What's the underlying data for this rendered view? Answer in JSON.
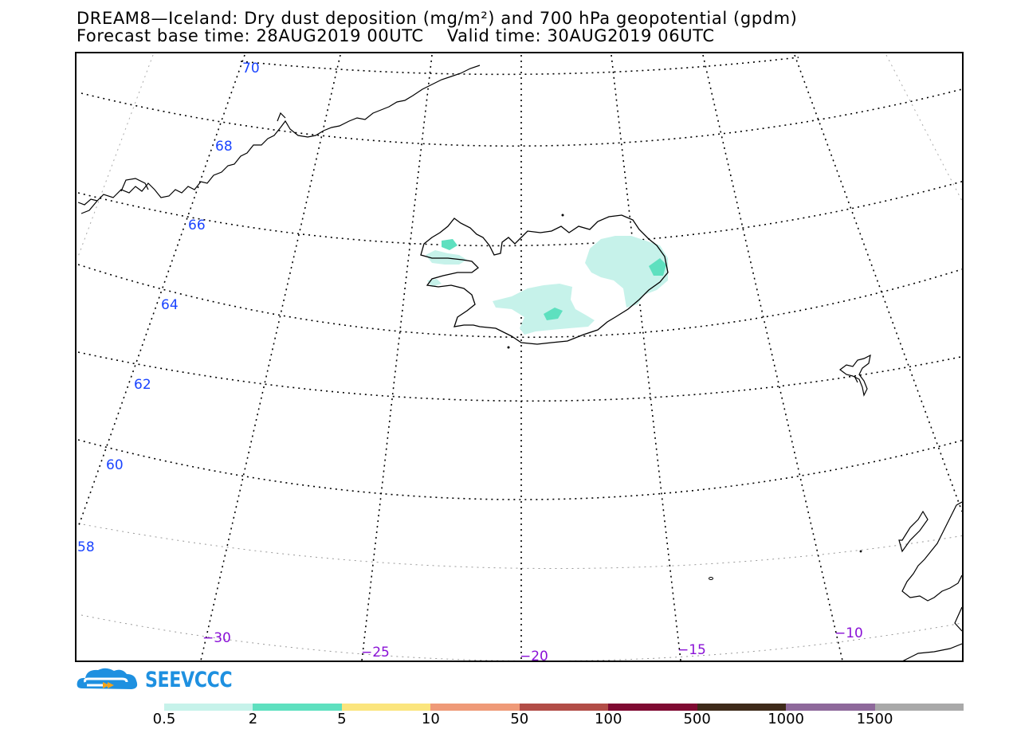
{
  "title_line1": "DREAM8—Iceland: Dry dust deposition (mg/m²) and 700 hPa geopotential (gpdm)",
  "title_line2": "Forecast base time: 28AUG2019 00UTC    Valid time: 30AUG2019 06UTC",
  "logo": {
    "text": "SEEVCCC"
  },
  "latitude_labels": [
    "70",
    "68",
    "66",
    "64",
    "62",
    "60",
    "58"
  ],
  "longitude_labels": [
    "−30",
    "−25",
    "−20",
    "−15",
    "−10"
  ],
  "colorbar": {
    "colors": [
      "#c6f2ea",
      "#5ee0bf",
      "#fbe57d",
      "#ef9a78",
      "#b24d47",
      "#7f0a32",
      "#3e2a1a",
      "#8e699b",
      "#a9a9a9"
    ],
    "ticks": [
      "0.5",
      "2",
      "5",
      "10",
      "50",
      "100",
      "500",
      "1000",
      "1500"
    ]
  }
}
